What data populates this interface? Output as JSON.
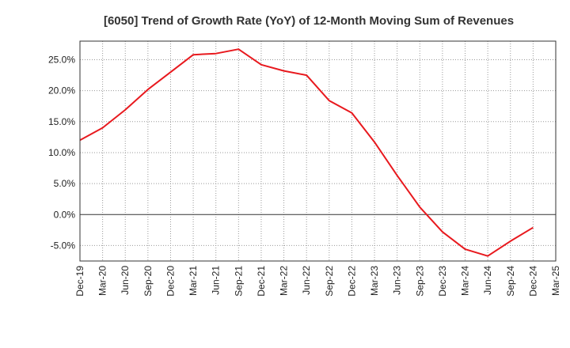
{
  "chart_data": {
    "type": "line",
    "title": "[6050]  Trend of Growth Rate (YoY) of 12-Month Moving Sum of Revenues",
    "xlabel": "",
    "ylabel": "",
    "x": [
      "Dec-19",
      "Mar-20",
      "Jun-20",
      "Sep-20",
      "Dec-20",
      "Mar-21",
      "Jun-21",
      "Sep-21",
      "Dec-21",
      "Mar-22",
      "Jun-22",
      "Sep-22",
      "Dec-22",
      "Mar-23",
      "Jun-23",
      "Sep-23",
      "Dec-23",
      "Mar-24",
      "Jun-24",
      "Sep-24",
      "Dec-24",
      "Mar-25"
    ],
    "x_tick_labels": [
      "Dec-19",
      "Mar-20",
      "Jun-20",
      "Sep-20",
      "Dec-20",
      "Mar-21",
      "Jun-21",
      "Sep-21",
      "Dec-21",
      "Mar-22",
      "Jun-22",
      "Sep-22",
      "Dec-22",
      "Mar-23",
      "Jun-23",
      "Sep-23",
      "Dec-23",
      "Mar-24",
      "Jun-24",
      "Sep-24",
      "Dec-24",
      "Mar-25"
    ],
    "y_ticks": [
      -5,
      0,
      5,
      10,
      15,
      20,
      25
    ],
    "y_tick_labels": [
      "-5.0%",
      "0.0%",
      "5.0%",
      "10.0%",
      "15.0%",
      "20.0%",
      "25.0%"
    ],
    "ylim": [
      -7.5,
      28
    ],
    "grid": true,
    "series": [
      {
        "color": "#e8191e",
        "values": [
          12.0,
          14.0,
          16.9,
          20.2,
          23.0,
          25.8,
          26.0,
          26.7,
          24.2,
          23.2,
          22.5,
          18.4,
          16.4,
          11.7,
          6.3,
          1.2,
          -2.8,
          -5.6,
          -6.7,
          -4.3,
          -2.1,
          null
        ]
      }
    ],
    "colors": {
      "line": "#e8191e",
      "grid": "#999999",
      "axis": "#333333"
    }
  }
}
